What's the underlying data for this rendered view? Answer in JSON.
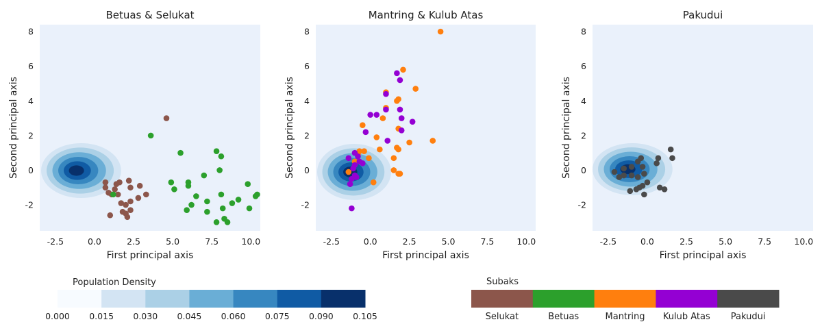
{
  "chart_data": [
    {
      "type": "scatter",
      "title": "Betuas & Selukat",
      "xlabel": "First principal axis",
      "ylabel": "Second principal axis",
      "xlim": [
        -3.5,
        10.6
      ],
      "ylim": [
        -3.5,
        8.4
      ],
      "xticks": [
        "-2.5",
        "0.0",
        "2.5",
        "5.0",
        "7.5",
        "10.0"
      ],
      "yticks": [
        "-2",
        "0",
        "2",
        "4",
        "6",
        "8"
      ],
      "series": [
        {
          "name": "Selukat",
          "color": "#8c564b",
          "points": [
            [
              4.6,
              3.0
            ],
            [
              0.7,
              -0.7
            ],
            [
              0.7,
              -1.0
            ],
            [
              0.9,
              -1.3
            ],
            [
              1.1,
              -1.4
            ],
            [
              1.4,
              -0.8
            ],
            [
              1.6,
              -0.7
            ],
            [
              1.5,
              -1.4
            ],
            [
              1.3,
              -1.1
            ],
            [
              2.2,
              -0.6
            ],
            [
              2.3,
              -1.0
            ],
            [
              2.9,
              -0.9
            ],
            [
              3.3,
              -1.4
            ],
            [
              2.8,
              -1.6
            ],
            [
              2.3,
              -1.8
            ],
            [
              1.7,
              -1.9
            ],
            [
              2.0,
              -2.0
            ],
            [
              2.3,
              -2.3
            ],
            [
              2.0,
              -2.5
            ],
            [
              1.8,
              -2.4
            ],
            [
              2.1,
              -2.7
            ],
            [
              1.0,
              -2.6
            ]
          ]
        },
        {
          "name": "Betuas",
          "color": "#2ca02c",
          "points": [
            [
              3.6,
              2.0
            ],
            [
              5.5,
              1.0
            ],
            [
              7.8,
              1.1
            ],
            [
              8.1,
              0.8
            ],
            [
              8.0,
              0.0
            ],
            [
              7.0,
              -0.3
            ],
            [
              6.0,
              -0.7
            ],
            [
              6.0,
              -0.9
            ],
            [
              4.9,
              -0.7
            ],
            [
              5.1,
              -1.1
            ],
            [
              1.2,
              -1.4
            ],
            [
              6.5,
              -1.5
            ],
            [
              8.1,
              -1.4
            ],
            [
              9.8,
              -0.8
            ],
            [
              10.4,
              -1.4
            ],
            [
              10.3,
              -1.5
            ],
            [
              6.2,
              -2.0
            ],
            [
              7.2,
              -1.8
            ],
            [
              5.9,
              -2.3
            ],
            [
              9.2,
              -1.7
            ],
            [
              8.8,
              -1.9
            ],
            [
              8.2,
              -2.2
            ],
            [
              9.9,
              -2.2
            ],
            [
              7.2,
              -2.4
            ],
            [
              8.3,
              -2.8
            ],
            [
              7.8,
              -3.0
            ],
            [
              8.5,
              -3.0
            ]
          ]
        }
      ]
    },
    {
      "type": "scatter",
      "title": "Mantring & Kulub Atas",
      "xlabel": "First principal axis",
      "ylabel": "Second principal axis",
      "xlim": [
        -3.5,
        10.6
      ],
      "ylim": [
        -3.5,
        8.4
      ],
      "xticks": [
        "-2.5",
        "0.0",
        "2.5",
        "5.0",
        "7.5",
        "10.0"
      ],
      "yticks": [
        "-2",
        "0",
        "2",
        "4",
        "6",
        "8"
      ],
      "series": [
        {
          "name": "Mantring",
          "color": "#ff7f0e",
          "points": [
            [
              4.5,
              8.0
            ],
            [
              2.1,
              5.8
            ],
            [
              1.0,
              4.5
            ],
            [
              2.9,
              4.7
            ],
            [
              1.7,
              4.0
            ],
            [
              1.8,
              4.1
            ],
            [
              1.0,
              3.6
            ],
            [
              0.8,
              3.0
            ],
            [
              -0.5,
              2.6
            ],
            [
              1.8,
              2.4
            ],
            [
              0.4,
              1.9
            ],
            [
              4.0,
              1.7
            ],
            [
              2.5,
              1.6
            ],
            [
              0.6,
              1.2
            ],
            [
              1.7,
              1.3
            ],
            [
              1.8,
              1.2
            ],
            [
              -0.4,
              1.1
            ],
            [
              -0.7,
              1.1
            ],
            [
              1.5,
              0.7
            ],
            [
              -0.1,
              0.7
            ],
            [
              -1.0,
              0.5
            ],
            [
              1.5,
              0.0
            ],
            [
              1.9,
              -0.2
            ],
            [
              1.8,
              -0.2
            ],
            [
              0.2,
              -0.7
            ],
            [
              -1.4,
              -0.1
            ],
            [
              -0.8,
              0.9
            ]
          ]
        },
        {
          "name": "Kulub Atas",
          "color": "#9400d3",
          "points": [
            [
              1.7,
              5.6
            ],
            [
              1.9,
              5.2
            ],
            [
              1.0,
              4.4
            ],
            [
              1.0,
              3.5
            ],
            [
              1.9,
              3.5
            ],
            [
              0.0,
              3.2
            ],
            [
              0.4,
              3.2
            ],
            [
              2.0,
              3.0
            ],
            [
              2.7,
              2.8
            ],
            [
              2.0,
              2.3
            ],
            [
              -0.3,
              2.2
            ],
            [
              1.1,
              1.7
            ],
            [
              -1.0,
              1.0
            ],
            [
              -0.8,
              0.8
            ],
            [
              -1.4,
              0.7
            ],
            [
              -0.7,
              0.5
            ],
            [
              -1.0,
              0.3
            ],
            [
              -0.5,
              0.4
            ],
            [
              -1.1,
              0.1
            ],
            [
              -1.0,
              -0.3
            ],
            [
              -1.2,
              -0.5
            ],
            [
              -0.9,
              -0.4
            ],
            [
              -1.3,
              -0.8
            ],
            [
              -1.2,
              -2.2
            ]
          ]
        }
      ]
    },
    {
      "type": "scatter",
      "title": "Pakudui",
      "xlabel": "First principal axis",
      "ylabel": "Second principal axis",
      "xlim": [
        -3.5,
        10.6
      ],
      "ylim": [
        -3.5,
        8.4
      ],
      "xticks": [
        "-2.5",
        "0.0",
        "2.5",
        "5.0",
        "7.5",
        "10.0"
      ],
      "yticks": [
        "-2",
        "0",
        "2",
        "4",
        "6",
        "8"
      ],
      "series": [
        {
          "name": "Pakudui",
          "color": "#4a4a4a",
          "points": [
            [
              1.5,
              1.2
            ],
            [
              1.6,
              0.7
            ],
            [
              0.7,
              0.7
            ],
            [
              0.6,
              0.4
            ],
            [
              -0.4,
              0.7
            ],
            [
              -0.6,
              0.5
            ],
            [
              -0.3,
              0.2
            ],
            [
              -1.0,
              0.2
            ],
            [
              -1.5,
              0.1
            ],
            [
              -0.2,
              -0.2
            ],
            [
              -0.6,
              -0.4
            ],
            [
              -1.0,
              -0.3
            ],
            [
              -1.5,
              -0.3
            ],
            [
              -2.1,
              -0.1
            ],
            [
              -1.8,
              -0.4
            ],
            [
              0.0,
              -0.7
            ],
            [
              -0.3,
              -0.9
            ],
            [
              -0.5,
              -1.0
            ],
            [
              -0.7,
              -1.1
            ],
            [
              0.8,
              -1.0
            ],
            [
              1.1,
              -1.1
            ],
            [
              -1.1,
              -1.2
            ],
            [
              -0.2,
              -1.4
            ]
          ]
        }
      ]
    }
  ],
  "density": {
    "legend_title": "Population Density",
    "ticks": [
      "0.000",
      "0.015",
      "0.030",
      "0.045",
      "0.060",
      "0.075",
      "0.090",
      "0.105"
    ],
    "colors": [
      "#f7fbff",
      "#d3e4f3",
      "#abd0e6",
      "#6aaed6",
      "#3787c0",
      "#105ba4",
      "#08306b"
    ],
    "levels": [
      0.015,
      0.03,
      0.045,
      0.06,
      0.075,
      0.09
    ]
  },
  "subaks_legend": {
    "title": "Subaks",
    "items": [
      {
        "label": "Selukat",
        "color": "#8c564b"
      },
      {
        "label": "Betuas",
        "color": "#2ca02c"
      },
      {
        "label": "Mantring",
        "color": "#ff7f0e"
      },
      {
        "label": "Kulub Atas",
        "color": "#9400d3"
      },
      {
        "label": "Pakudui",
        "color": "#4a4a4a"
      }
    ]
  },
  "plot_background": "#eaf1fb"
}
